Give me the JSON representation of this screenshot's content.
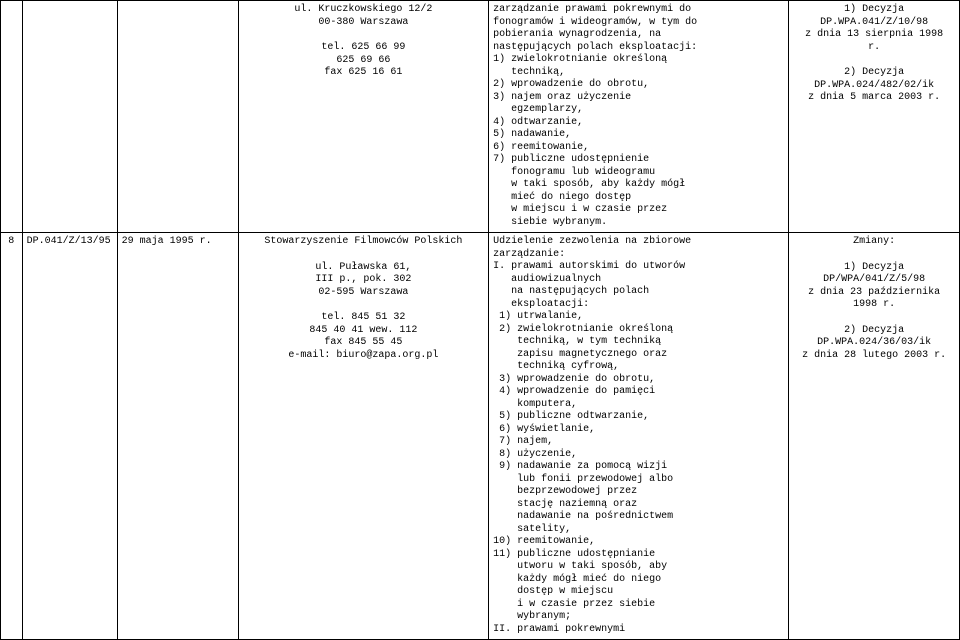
{
  "rows": [
    {
      "col1": "",
      "col2": "",
      "col3": "",
      "col4_lines_center": [
        "ul. Kruczkowskiego 12/2",
        "00-380 Warszawa",
        "",
        "tel. 625 66 99",
        "625 69 66",
        "fax 625 16 61"
      ],
      "col5_lines": [
        "zarządzanie prawami pokrewnymi do",
        "fonogramów i wideogramów, w tym do",
        "pobierania wynagrodzenia, na",
        "następujących polach eksploatacji:",
        "1) zwielokrotnianie określoną",
        "   techniką,",
        "2) wprowadzenie do obrotu,",
        "3) najem oraz użyczenie",
        "   egzemplarzy,",
        "4) odtwarzanie,",
        "5) nadawanie,",
        "6) reemitowanie,",
        "7) publiczne udostępnienie",
        "   fonogramu lub wideogramu",
        "   w taki sposób, aby każdy mógł",
        "   mieć do niego dostęp",
        "   w miejscu i w czasie przez",
        "   siebie wybranym."
      ],
      "col6_lines_center": [
        "1) Decyzja",
        "DP.WPA.041/Z/10/98",
        "z dnia 13 sierpnia 1998",
        "r.",
        "",
        "2) Decyzja",
        "DP.WPA.024/482/02/ik",
        "z dnia 5 marca 2003 r."
      ]
    },
    {
      "col1": "8",
      "col2": "DP.041/Z/13/95",
      "col3": "29 maja 1995 r.",
      "col4_lines_center": [
        "Stowarzyszenie Filmowców Polskich",
        "",
        "ul. Puławska 61,",
        "III p., pok. 302",
        "02-595 Warszawa",
        "",
        "tel. 845 51 32",
        "845 40 41 wew. 112",
        "fax 845 55 45",
        "e-mail: biuro@zapa.org.pl"
      ],
      "col5_lines": [
        "Udzielenie zezwolenia na zbiorowe",
        "zarządzanie:",
        "I. prawami autorskimi do utworów",
        "   audiowizualnych",
        "   na następujących polach",
        "   eksploatacji:",
        " 1) utrwalanie,",
        " 2) zwielokrotnianie określoną",
        "    techniką, w tym techniką",
        "    zapisu magnetycznego oraz",
        "    techniką cyfrową,",
        " 3) wprowadzenie do obrotu,",
        " 4) wprowadzenie do pamięci",
        "    komputera,",
        " 5) publiczne odtwarzanie,",
        " 6) wyświetlanie,",
        " 7) najem,",
        " 8) użyczenie,",
        " 9) nadawanie za pomocą wizji",
        "    lub fonii przewodowej albo",
        "    bezprzewodowej przez",
        "    stację naziemną oraz",
        "    nadawanie na pośrednictwem",
        "    satelity,",
        "10) reemitowanie,",
        "11) publiczne udostępnianie",
        "    utworu w taki sposób, aby",
        "    każdy mógł mieć do niego",
        "    dostęp w miejscu",
        "    i w czasie przez siebie",
        "    wybranym;",
        "II. prawami pokrewnymi"
      ],
      "col6_lines_center": [
        "Zmiany:",
        "",
        "1) Decyzja",
        "DP/WPA/041/Z/5/98",
        "z dnia 23 października",
        "1998 r.",
        "",
        "2) Decyzja",
        "DP.WPA.024/36/03/ik",
        "z dnia 28 lutego 2003 r."
      ]
    }
  ]
}
